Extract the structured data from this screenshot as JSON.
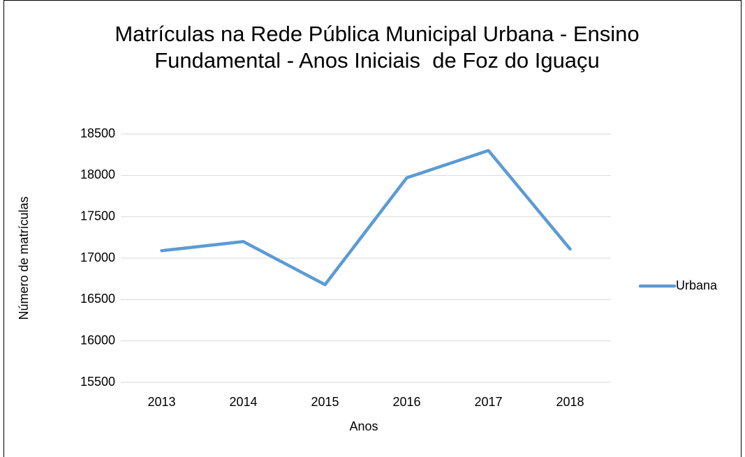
{
  "chart_data": {
    "type": "line",
    "title": "Matrículas na Rede Pública Municipal Urbana - Ensino Fundamental - Anos Iniciais  de Foz do Iguaçu",
    "x_label": "Anos",
    "y_label": "Número de matrículas",
    "categories": [
      "2013",
      "2014",
      "2015",
      "2016",
      "2017",
      "2018"
    ],
    "series": [
      {
        "name": "Urbana",
        "color": "#5b9bd5",
        "values": [
          17090,
          17200,
          16680,
          17970,
          18300,
          17110
        ]
      }
    ],
    "ylim": [
      15500,
      18500
    ],
    "yticks": [
      15500,
      16000,
      16500,
      17000,
      17500,
      18000,
      18500
    ],
    "grid": true,
    "legend": "right"
  }
}
